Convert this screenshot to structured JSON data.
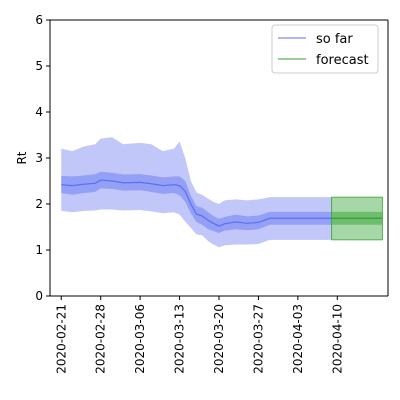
{
  "chart_data": {
    "type": "line",
    "title": "",
    "xlabel": "",
    "ylabel": "Rt",
    "ylim": [
      0,
      6
    ],
    "xlim": [
      "2020-02-19",
      "2020-04-19"
    ],
    "yticks": [
      0,
      1,
      2,
      3,
      4,
      5,
      6
    ],
    "xticks": [
      "2020-02-21",
      "2020-02-28",
      "2020-03-06",
      "2020-03-13",
      "2020-03-20",
      "2020-03-27",
      "2020-04-03",
      "2020-04-10"
    ],
    "grid": false,
    "legend": {
      "placement": "top-right",
      "entries": [
        "so far",
        "forecast"
      ]
    },
    "series": [
      {
        "name": "so far",
        "color": "#5b6ff0",
        "dates": [
          "2020-02-21",
          "2020-02-23",
          "2020-02-25",
          "2020-02-27",
          "2020-02-28",
          "2020-03-01",
          "2020-03-03",
          "2020-03-06",
          "2020-03-08",
          "2020-03-10",
          "2020-03-12",
          "2020-03-13",
          "2020-03-14",
          "2020-03-15",
          "2020-03-16",
          "2020-03-17",
          "2020-03-18",
          "2020-03-19",
          "2020-03-20",
          "2020-03-21",
          "2020-03-23",
          "2020-03-25",
          "2020-03-27",
          "2020-03-29",
          "2020-04-01",
          "2020-04-04",
          "2020-04-07",
          "2020-04-09"
        ],
        "median": [
          2.42,
          2.4,
          2.43,
          2.45,
          2.52,
          2.5,
          2.46,
          2.47,
          2.44,
          2.4,
          2.42,
          2.4,
          2.28,
          2.0,
          1.78,
          1.74,
          1.65,
          1.58,
          1.52,
          1.57,
          1.61,
          1.58,
          1.6,
          1.69,
          1.69,
          1.69,
          1.69,
          1.69
        ],
        "inner_lower": [
          2.24,
          2.2,
          2.24,
          2.26,
          2.34,
          2.33,
          2.29,
          2.3,
          2.26,
          2.22,
          2.24,
          2.19,
          2.05,
          1.8,
          1.61,
          1.55,
          1.46,
          1.41,
          1.37,
          1.42,
          1.45,
          1.43,
          1.45,
          1.55,
          1.55,
          1.55,
          1.55,
          1.55
        ],
        "inner_upper": [
          2.61,
          2.6,
          2.62,
          2.65,
          2.7,
          2.68,
          2.64,
          2.65,
          2.62,
          2.58,
          2.6,
          2.6,
          2.5,
          2.18,
          1.95,
          1.92,
          1.83,
          1.74,
          1.68,
          1.72,
          1.77,
          1.73,
          1.75,
          1.83,
          1.83,
          1.83,
          1.83,
          1.83
        ],
        "outer_lower": [
          1.85,
          1.82,
          1.85,
          1.86,
          1.88,
          1.88,
          1.86,
          1.87,
          1.84,
          1.8,
          1.82,
          1.77,
          1.62,
          1.48,
          1.34,
          1.32,
          1.2,
          1.12,
          1.06,
          1.1,
          1.12,
          1.12,
          1.13,
          1.22,
          1.22,
          1.22,
          1.22,
          1.22
        ],
        "outer_upper": [
          3.2,
          3.15,
          3.25,
          3.3,
          3.42,
          3.45,
          3.3,
          3.33,
          3.3,
          3.15,
          3.2,
          3.36,
          3.0,
          2.5,
          2.25,
          2.2,
          2.12,
          2.05,
          2.0,
          2.08,
          2.1,
          2.08,
          2.1,
          2.15,
          2.15,
          2.15,
          2.15,
          2.15
        ]
      },
      {
        "name": "forecast",
        "color": "#2ca02c",
        "dates": [
          "2020-04-09",
          "2020-04-18"
        ],
        "median": [
          1.69,
          1.69
        ],
        "inner_lower": [
          1.55,
          1.55
        ],
        "inner_upper": [
          1.83,
          1.83
        ],
        "outer_lower": [
          1.22,
          1.22
        ],
        "outer_upper": [
          2.15,
          2.15
        ]
      }
    ]
  }
}
